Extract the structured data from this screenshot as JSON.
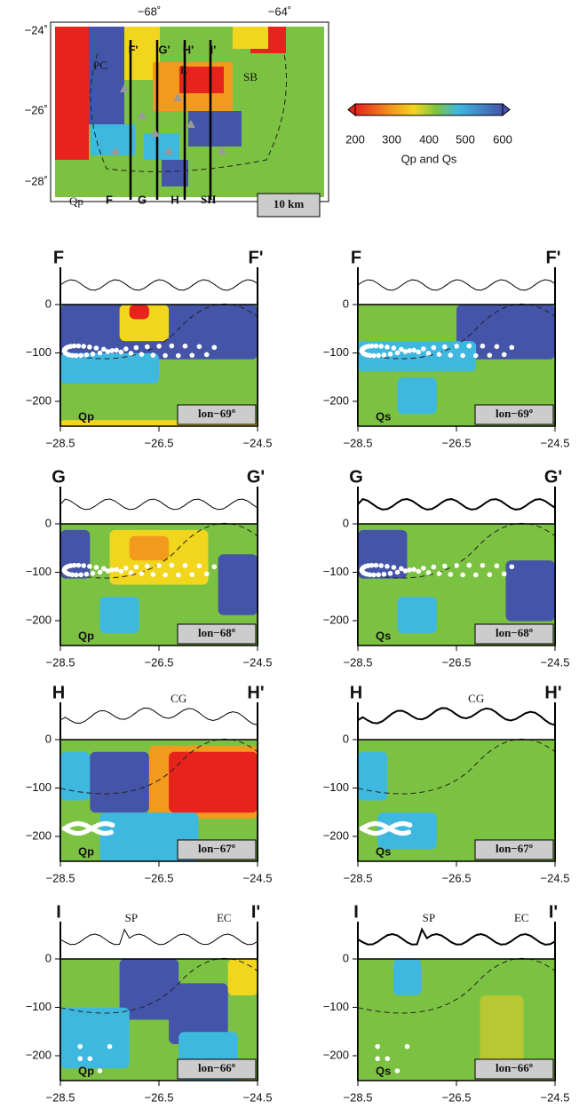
{
  "map": {
    "lon_labels": [
      "−68˚",
      "−64˚"
    ],
    "lat_labels": [
      "−24˚",
      "−26˚",
      "−28˚"
    ],
    "top_labels": [
      "F'",
      "G'",
      "H'",
      "I'"
    ],
    "bottom_labels": [
      "F",
      "G",
      "H",
      "SH"
    ],
    "place_labels": [
      "PC",
      "SB",
      "E"
    ],
    "panel_label": "Qp",
    "scale": "10 km"
  },
  "colorbar": {
    "ticks": [
      "200",
      "300",
      "400",
      "500",
      "600"
    ],
    "label": "Qp and Qs"
  },
  "depth_ticks": [
    "0",
    "−100",
    "−200"
  ],
  "lat_ticks": [
    "−28.5",
    "−26.5",
    "−24.5"
  ],
  "sections": [
    {
      "start": "F",
      "end": "F'",
      "annotations": [],
      "panels": [
        {
          "q": "Qp",
          "lon": "lon−69º"
        },
        {
          "q": "Qs",
          "lon": "lon−69º"
        }
      ]
    },
    {
      "start": "G",
      "end": "G'",
      "annotations": [],
      "panels": [
        {
          "q": "Qp",
          "lon": "lon−68º"
        },
        {
          "q": "Qs",
          "lon": "lon−68º"
        }
      ]
    },
    {
      "start": "H",
      "end": "H'",
      "annotations": [
        "CG"
      ],
      "panels": [
        {
          "q": "Qp",
          "lon": "lon−67º"
        },
        {
          "q": "Qs",
          "lon": "lon−67º"
        }
      ]
    },
    {
      "start": "I",
      "end": "I'",
      "annotations": [
        "SP",
        "EC"
      ],
      "panels": [
        {
          "q": "Qp",
          "lon": "lon−66º"
        },
        {
          "q": "Qs",
          "lon": "lon−66º"
        }
      ]
    }
  ]
}
